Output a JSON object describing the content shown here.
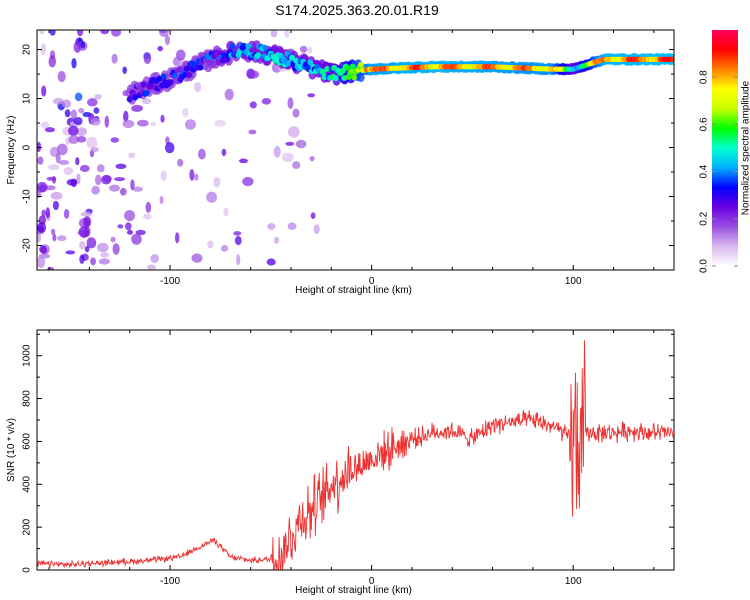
{
  "title": "S174.2025.363.20.01.R19",
  "chart_data": [
    {
      "type": "heatmap",
      "name": "spectrogram",
      "xlabel": "Height of straight line (km)",
      "ylabel": "Frequency (Hz)",
      "xlim": [
        -166,
        150
      ],
      "ylim": [
        -25,
        24
      ],
      "xticks": [
        -100,
        0,
        100
      ],
      "yticks": [
        -20,
        -10,
        0,
        10,
        20
      ],
      "colorbar": {
        "label": "Normalized spectral amplitude",
        "range": [
          0,
          1
        ],
        "ticks": [
          0.0,
          0.2,
          0.4,
          0.6,
          0.8
        ],
        "colors": [
          "#ffffff",
          "#d9b8ee",
          "#9a4fe0",
          "#6a00e0",
          "#0000ff",
          "#00b0ff",
          "#00ffd0",
          "#00ff00",
          "#c8ff00",
          "#ffff00",
          "#ff8000",
          "#ff0000",
          "#ff0060"
        ]
      },
      "ridge": [
        {
          "x": -120,
          "f": 11,
          "a": 0.28
        },
        {
          "x": -100,
          "f": 14,
          "a": 0.28
        },
        {
          "x": -80,
          "f": 18,
          "a": 0.3
        },
        {
          "x": -65,
          "f": 20,
          "a": 0.38
        },
        {
          "x": -50,
          "f": 19,
          "a": 0.42
        },
        {
          "x": -35,
          "f": 17,
          "a": 0.4
        },
        {
          "x": -20,
          "f": 15,
          "a": 0.45
        },
        {
          "x": 0,
          "f": 16,
          "a": 0.8
        },
        {
          "x": 30,
          "f": 16.5,
          "a": 0.82
        },
        {
          "x": 60,
          "f": 16.5,
          "a": 0.8
        },
        {
          "x": 90,
          "f": 16,
          "a": 0.78
        },
        {
          "x": 100,
          "f": 16,
          "a": 0.45
        },
        {
          "x": 115,
          "f": 18,
          "a": 0.82
        },
        {
          "x": 150,
          "f": 18,
          "a": 0.85
        }
      ]
    },
    {
      "type": "line",
      "name": "snr",
      "xlabel": "Height of straight line (km)",
      "ylabel": "SNR (10 * v/v)",
      "xlim": [
        -166,
        150
      ],
      "ylim": [
        0,
        1120
      ],
      "xticks": [
        -100,
        0,
        100
      ],
      "yticks": [
        0,
        200,
        400,
        600,
        800,
        1000
      ],
      "color": "#ee3333",
      "x": [
        -166,
        -150,
        -130,
        -110,
        -95,
        -85,
        -78,
        -70,
        -60,
        -50,
        -45,
        -40,
        -35,
        -30,
        -25,
        -20,
        -15,
        -10,
        -5,
        0,
        10,
        20,
        30,
        40,
        50,
        60,
        70,
        80,
        90,
        95,
        100,
        102,
        104,
        106,
        110,
        120,
        130,
        140,
        150
      ],
      "y": [
        30,
        25,
        35,
        45,
        60,
        110,
        140,
        60,
        45,
        50,
        80,
        150,
        250,
        280,
        320,
        400,
        440,
        470,
        490,
        520,
        570,
        610,
        640,
        650,
        610,
        680,
        690,
        700,
        670,
        640,
        600,
        600,
        610,
        640,
        640,
        640,
        650,
        640,
        640
      ]
    }
  ]
}
